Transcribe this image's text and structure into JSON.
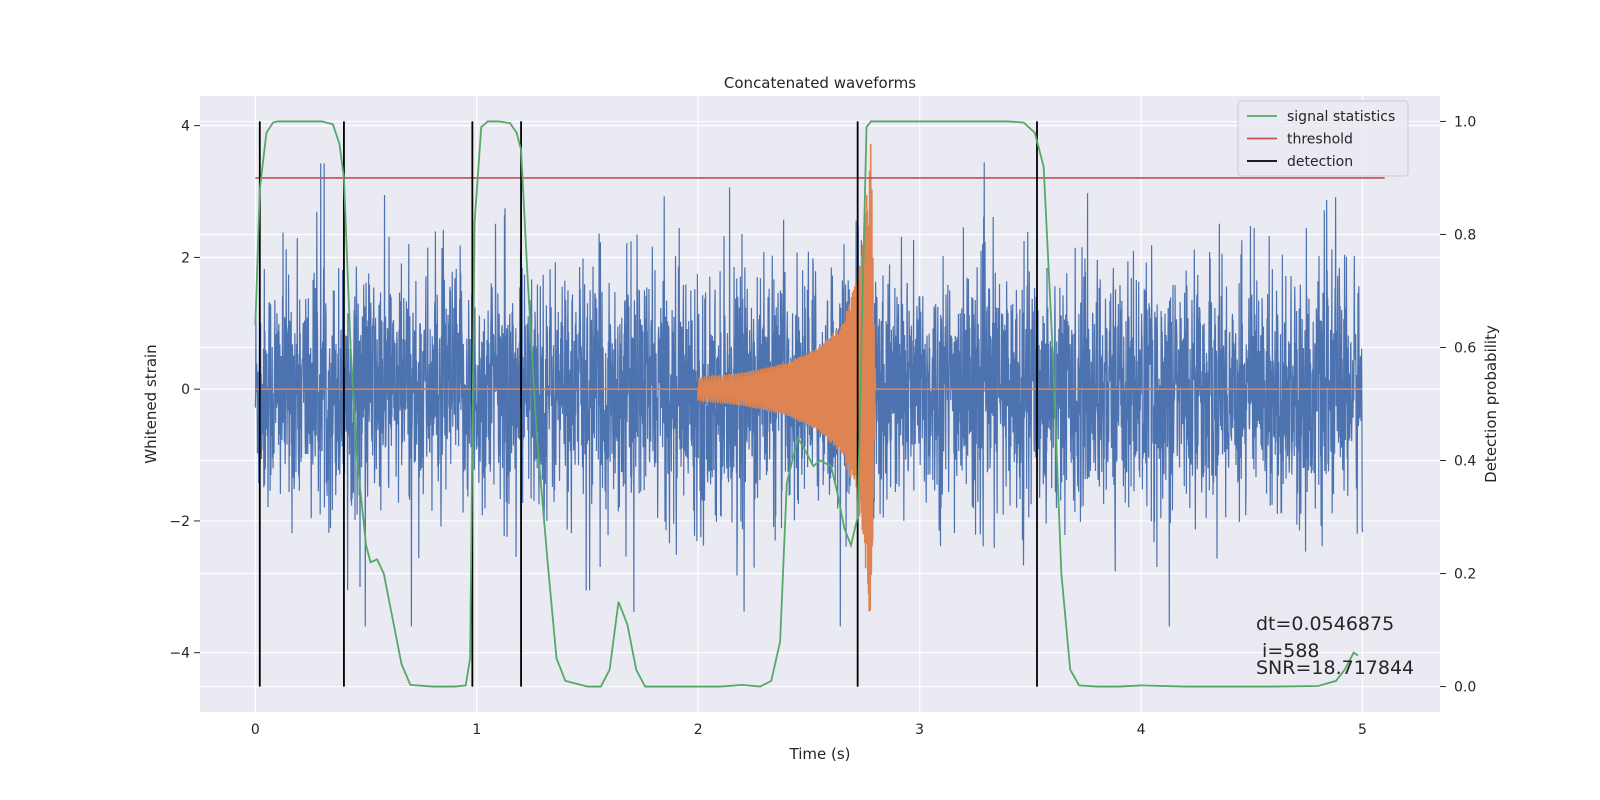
{
  "chart_data": {
    "type": "line",
    "title": "Concatenated waveforms",
    "xlabel": "Time (s)",
    "ylabel": "Whitened strain",
    "y2label": "Detection probability",
    "xlim": [
      -0.25,
      5.35
    ],
    "ylim": [
      -4.9,
      4.45
    ],
    "y2lim": [
      -0.045,
      1.045
    ],
    "x_ticks": [
      0,
      1,
      2,
      3,
      4,
      5
    ],
    "y_ticks": [
      -4,
      -2,
      0,
      2,
      4
    ],
    "y2_ticks": [
      0.0,
      0.2,
      0.4,
      0.6,
      0.8,
      1.0
    ],
    "y2_tick_labels": [
      "0.0",
      "0.2",
      "0.4",
      "0.6",
      "0.8",
      "1.0"
    ],
    "y_tick_labels": [
      "−4",
      "−2",
      "0",
      "2",
      "4"
    ],
    "grid": true,
    "legend_position": "top-right",
    "colors": {
      "noise": "#4c72b0",
      "signal": "#dd8452",
      "statistics": "#55a868",
      "threshold": "#c44e52",
      "detection": "#000000",
      "background": "#eaeaf2"
    },
    "legend": [
      {
        "label": "signal statistics",
        "color": "#55a868"
      },
      {
        "label": "threshold",
        "color": "#c44e52"
      },
      {
        "label": "detection",
        "color": "#000000"
      }
    ],
    "series": [
      {
        "name": "signal statistics",
        "axis": "right",
        "x": [
          0.0,
          0.02,
          0.05,
          0.08,
          0.1,
          0.2,
          0.3,
          0.35,
          0.38,
          0.4,
          0.43,
          0.46,
          0.5,
          0.52,
          0.55,
          0.58,
          0.62,
          0.66,
          0.7,
          0.8,
          0.9,
          0.95,
          0.97,
          0.99,
          1.02,
          1.05,
          1.1,
          1.15,
          1.18,
          1.2,
          1.23,
          1.27,
          1.32,
          1.36,
          1.4,
          1.5,
          1.56,
          1.6,
          1.64,
          1.68,
          1.72,
          1.76,
          1.8,
          1.9,
          2.0,
          2.1,
          2.2,
          2.28,
          2.33,
          2.37,
          2.4,
          2.45,
          2.48,
          2.52,
          2.55,
          2.6,
          2.63,
          2.66,
          2.69,
          2.72,
          2.74,
          2.76,
          2.78,
          2.82,
          2.9,
          3.0,
          3.1,
          3.2,
          3.3,
          3.4,
          3.47,
          3.52,
          3.56,
          3.6,
          3.64,
          3.68,
          3.72,
          3.8,
          3.9,
          4.0,
          4.2,
          4.4,
          4.6,
          4.8,
          4.88,
          4.92,
          4.96,
          4.98
        ],
        "values": [
          0.64,
          0.88,
          0.98,
          0.998,
          1.0,
          1.0,
          1.0,
          0.995,
          0.96,
          0.9,
          0.6,
          0.4,
          0.25,
          0.22,
          0.225,
          0.2,
          0.12,
          0.04,
          0.003,
          0.0,
          0.0,
          0.002,
          0.05,
          0.82,
          0.99,
          1.0,
          1.0,
          0.997,
          0.98,
          0.95,
          0.72,
          0.45,
          0.22,
          0.05,
          0.01,
          0.0,
          0.0,
          0.03,
          0.15,
          0.11,
          0.03,
          0.0,
          0.0,
          0.0,
          0.0,
          0.0,
          0.003,
          0.0,
          0.01,
          0.08,
          0.36,
          0.44,
          0.42,
          0.39,
          0.4,
          0.39,
          0.34,
          0.28,
          0.25,
          0.3,
          0.65,
          0.99,
          1.0,
          1.0,
          1.0,
          1.0,
          1.0,
          1.0,
          1.0,
          1.0,
          0.998,
          0.98,
          0.92,
          0.6,
          0.2,
          0.03,
          0.002,
          0.0,
          0.0,
          0.002,
          0.0,
          0.0,
          0.0,
          0.001,
          0.01,
          0.03,
          0.06,
          0.055
        ]
      },
      {
        "name": "threshold",
        "axis": "right",
        "x": [
          0.0,
          5.1
        ],
        "values": [
          0.9,
          0.9
        ]
      },
      {
        "name": "detection",
        "axis": "right",
        "x": [
          0.02,
          0.4,
          0.98,
          1.2,
          2.72,
          3.53
        ],
        "values": [
          1.0,
          1.0,
          1.0,
          1.0,
          1.0,
          1.0
        ]
      },
      {
        "name": "",
        "axis": "left",
        "x": [
          0.0,
          5.0
        ],
        "values": [
          0.0,
          0.0
        ],
        "description": "whitened noisy strain, approx. zero-mean with std ~0.9, peaks to about ±3.6"
      },
      {
        "name": "",
        "axis": "left",
        "x": [
          2.0,
          2.2,
          2.4,
          2.55,
          2.65,
          2.72,
          2.76,
          2.78,
          2.8,
          5.0
        ],
        "values": [
          0.18,
          0.25,
          0.4,
          0.65,
          1.0,
          1.7,
          2.9,
          3.8,
          0.0,
          0.0
        ],
        "description": "injected chirp envelope (zero outside 2.0–2.8 s)"
      }
    ],
    "annotations": [
      "dt=0.0546875",
      " i=588",
      "SNR=18.717844"
    ]
  }
}
